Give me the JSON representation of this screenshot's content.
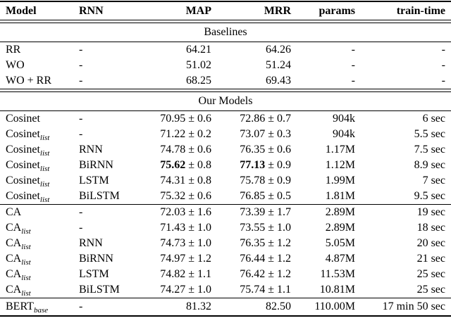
{
  "page": {
    "background_color": "#ffffff",
    "text_color": "#000000",
    "rule_color": "#000000"
  },
  "table": {
    "columns": [
      {
        "key": "model",
        "label": "Model",
        "align": "left"
      },
      {
        "key": "rnn",
        "label": "RNN",
        "align": "left"
      },
      {
        "key": "map",
        "label": "MAP",
        "align": "right"
      },
      {
        "key": "mrr",
        "label": "MRR",
        "align": "right"
      },
      {
        "key": "params",
        "label": "params",
        "align": "right"
      },
      {
        "key": "train_time",
        "label": "train-time",
        "align": "right"
      }
    ],
    "sections": [
      {
        "title": "Baselines",
        "groups": [
          {
            "rows": [
              {
                "model": "RR",
                "model_sub": "",
                "rnn": "-",
                "map": "64.21",
                "map_pm": "",
                "map_bold": false,
                "mrr": "64.26",
                "mrr_pm": "",
                "mrr_bold": false,
                "params": "-",
                "train_time": "-"
              },
              {
                "model": "WO",
                "model_sub": "",
                "rnn": "-",
                "map": "51.02",
                "map_pm": "",
                "map_bold": false,
                "mrr": "51.24",
                "mrr_pm": "",
                "mrr_bold": false,
                "params": "-",
                "train_time": "-"
              },
              {
                "model": "WO + RR",
                "model_sub": "",
                "rnn": "-",
                "map": "68.25",
                "map_pm": "",
                "map_bold": false,
                "mrr": "69.43",
                "mrr_pm": "",
                "mrr_bold": false,
                "params": "-",
                "train_time": "-"
              }
            ]
          }
        ]
      },
      {
        "title": "Our Models",
        "groups": [
          {
            "rows": [
              {
                "model": "Cosinet",
                "model_sub": "",
                "rnn": "-",
                "map": "70.95",
                "map_pm": "± 0.6",
                "map_bold": false,
                "mrr": "72.86",
                "mrr_pm": "± 0.7",
                "mrr_bold": false,
                "params": "904k",
                "train_time": "6 sec"
              },
              {
                "model": "Cosinet",
                "model_sub": "list",
                "rnn": "-",
                "map": "71.22",
                "map_pm": "± 0.2",
                "map_bold": false,
                "mrr": "73.07",
                "mrr_pm": "± 0.3",
                "mrr_bold": false,
                "params": "904k",
                "train_time": "5.5 sec"
              },
              {
                "model": "Cosinet",
                "model_sub": "list",
                "rnn": "RNN",
                "map": "74.78",
                "map_pm": "± 0.6",
                "map_bold": false,
                "mrr": "76.35",
                "mrr_pm": "± 0.6",
                "mrr_bold": false,
                "params": "1.17M",
                "train_time": "7.5 sec"
              },
              {
                "model": "Cosinet",
                "model_sub": "list",
                "rnn": "BiRNN",
                "map": "75.62",
                "map_pm": "± 0.8",
                "map_bold": true,
                "mrr": "77.13",
                "mrr_pm": "± 0.9",
                "mrr_bold": true,
                "params": "1.12M",
                "train_time": "8.9 sec"
              },
              {
                "model": "Cosinet",
                "model_sub": "list",
                "rnn": "LSTM",
                "map": "74.31",
                "map_pm": "± 0.8",
                "map_bold": false,
                "mrr": "75.78",
                "mrr_pm": "± 0.9",
                "mrr_bold": false,
                "params": "1.99M",
                "train_time": "7 sec"
              },
              {
                "model": "Cosinet",
                "model_sub": "list",
                "rnn": "BiLSTM",
                "map": "75.32",
                "map_pm": "± 0.6",
                "map_bold": false,
                "mrr": "76.85",
                "mrr_pm": "± 0.5",
                "mrr_bold": false,
                "params": "1.81M",
                "train_time": "9.5 sec"
              }
            ]
          },
          {
            "rows": [
              {
                "model": "CA",
                "model_sub": "",
                "rnn": "-",
                "map": "72.03",
                "map_pm": "± 1.6",
                "map_bold": false,
                "mrr": "73.39",
                "mrr_pm": "± 1.7",
                "mrr_bold": false,
                "params": "2.89M",
                "train_time": "19 sec"
              },
              {
                "model": "CA",
                "model_sub": "list",
                "rnn": "-",
                "map": "71.43",
                "map_pm": "± 1.0",
                "map_bold": false,
                "mrr": "73.55",
                "mrr_pm": "± 1.0",
                "mrr_bold": false,
                "params": "2.89M",
                "train_time": "18 sec"
              },
              {
                "model": "CA",
                "model_sub": "list",
                "rnn": "RNN",
                "map": "74.73",
                "map_pm": "± 1.0",
                "map_bold": false,
                "mrr": "76.35",
                "mrr_pm": "± 1.2",
                "mrr_bold": false,
                "params": "5.05M",
                "train_time": "20 sec"
              },
              {
                "model": "CA",
                "model_sub": "list",
                "rnn": "BiRNN",
                "map": "74.97",
                "map_pm": "± 1.2",
                "map_bold": false,
                "mrr": "76.44",
                "mrr_pm": "± 1.2",
                "mrr_bold": false,
                "params": "4.87M",
                "train_time": "21 sec"
              },
              {
                "model": "CA",
                "model_sub": "list",
                "rnn": "LSTM",
                "map": "74.82",
                "map_pm": "± 1.1",
                "map_bold": false,
                "mrr": "76.42",
                "mrr_pm": "± 1.2",
                "mrr_bold": false,
                "params": "11.53M",
                "train_time": "25 sec"
              },
              {
                "model": "CA",
                "model_sub": "list",
                "rnn": "BiLSTM",
                "map": "74.27",
                "map_pm": "± 1.0",
                "map_bold": false,
                "mrr": "75.74",
                "mrr_pm": "± 1.1",
                "mrr_bold": false,
                "params": "10.81M",
                "train_time": "25 sec"
              }
            ]
          },
          {
            "rows": [
              {
                "model": "BERT",
                "model_sub": "base",
                "rnn": "-",
                "map": "81.32",
                "map_pm": "",
                "map_bold": false,
                "mrr": "82.50",
                "mrr_pm": "",
                "mrr_bold": false,
                "params": "110.00M",
                "train_time": "17 min 50 sec"
              }
            ]
          }
        ]
      }
    ]
  }
}
